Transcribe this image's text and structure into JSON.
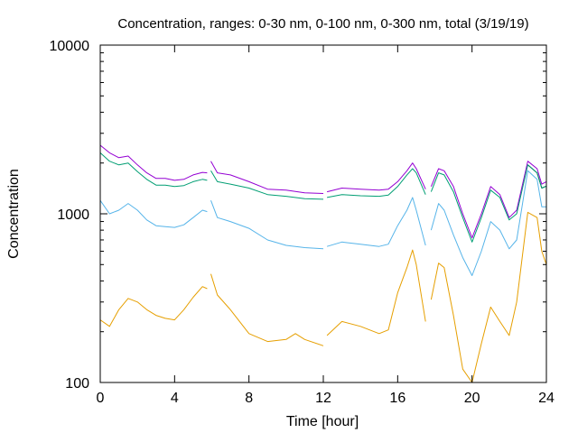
{
  "chart_data": {
    "type": "line",
    "title": "Concentration, ranges: 0-30 nm, 0-100 nm, 0-300 nm, total (3/19/19)",
    "xlabel": "Time [hour]",
    "ylabel": "Concentration",
    "xlim": [
      0,
      24
    ],
    "ylim": [
      100,
      10000
    ],
    "yscale": "log",
    "grid": false,
    "x_ticks": [
      0,
      4,
      8,
      12,
      16,
      20,
      24
    ],
    "y_ticks": [
      100,
      1000,
      10000
    ],
    "x_tick_labels": [
      "0",
      "4",
      "8",
      "12",
      "16",
      "20",
      "24"
    ],
    "y_tick_labels": [
      "100",
      "1000",
      "10000"
    ],
    "series": [
      {
        "color": "#9400d3",
        "segments": [
          [
            [
              0,
              2550
            ],
            [
              0.5,
              2300
            ],
            [
              1,
              2150
            ],
            [
              1.5,
              2200
            ],
            [
              2,
              1950
            ],
            [
              2.5,
              1750
            ],
            [
              3,
              1620
            ],
            [
              3.5,
              1620
            ],
            [
              4,
              1580
            ],
            [
              4.5,
              1600
            ],
            [
              5,
              1700
            ],
            [
              5.5,
              1760
            ],
            [
              5.75,
              1750
            ]
          ],
          [
            [
              5.95,
              2050
            ],
            [
              6.3,
              1750
            ],
            [
              7,
              1700
            ],
            [
              8,
              1550
            ],
            [
              9,
              1400
            ],
            [
              10,
              1380
            ],
            [
              11,
              1330
            ],
            [
              12,
              1320
            ]
          ],
          [
            [
              12.2,
              1350
            ],
            [
              13,
              1420
            ],
            [
              14,
              1400
            ],
            [
              15,
              1380
            ],
            [
              15.5,
              1400
            ],
            [
              16,
              1550
            ],
            [
              16.5,
              1800
            ],
            [
              16.8,
              2000
            ],
            [
              17,
              1850
            ],
            [
              17.5,
              1400
            ]
          ],
          [
            [
              17.8,
              1450
            ],
            [
              18.2,
              1850
            ],
            [
              18.5,
              1800
            ],
            [
              19,
              1450
            ],
            [
              19.5,
              1000
            ],
            [
              20,
              720
            ],
            [
              20.5,
              1000
            ],
            [
              21,
              1450
            ],
            [
              21.5,
              1300
            ],
            [
              22,
              950
            ],
            [
              22.4,
              1050
            ],
            [
              23,
              2050
            ],
            [
              23.5,
              1850
            ],
            [
              23.75,
              1500
            ],
            [
              24,
              1550
            ]
          ]
        ]
      },
      {
        "color": "#1e1e1e",
        "segments": [
          [
            [
              23,
              1950
            ],
            [
              23.5,
              1750
            ],
            [
              23.75,
              1420
            ],
            [
              24,
              1460
            ]
          ]
        ]
      },
      {
        "color": "#009e73",
        "segments": [
          [
            [
              0,
              2300
            ],
            [
              0.5,
              2050
            ],
            [
              1,
              1950
            ],
            [
              1.5,
              2000
            ],
            [
              2,
              1780
            ],
            [
              2.5,
              1600
            ],
            [
              3,
              1480
            ],
            [
              3.5,
              1480
            ],
            [
              4,
              1450
            ],
            [
              4.5,
              1470
            ],
            [
              5,
              1550
            ],
            [
              5.5,
              1600
            ],
            [
              5.75,
              1580
            ]
          ],
          [
            [
              5.95,
              1800
            ],
            [
              6.3,
              1550
            ],
            [
              7,
              1500
            ],
            [
              8,
              1420
            ],
            [
              9,
              1300
            ],
            [
              10,
              1270
            ],
            [
              11,
              1230
            ],
            [
              12,
              1220
            ]
          ],
          [
            [
              12.2,
              1250
            ],
            [
              13,
              1300
            ],
            [
              14,
              1280
            ],
            [
              15,
              1270
            ],
            [
              15.5,
              1290
            ],
            [
              16,
              1450
            ],
            [
              16.5,
              1700
            ],
            [
              16.8,
              1850
            ],
            [
              17,
              1750
            ],
            [
              17.5,
              1300
            ]
          ],
          [
            [
              17.8,
              1350
            ],
            [
              18.2,
              1750
            ],
            [
              18.5,
              1700
            ],
            [
              19,
              1350
            ],
            [
              19.5,
              950
            ],
            [
              20,
              680
            ],
            [
              20.5,
              950
            ],
            [
              21,
              1380
            ],
            [
              21.5,
              1250
            ],
            [
              22,
              920
            ],
            [
              22.4,
              1000
            ],
            [
              23,
              1950
            ],
            [
              23.5,
              1750
            ],
            [
              23.75,
              1420
            ],
            [
              24,
              1460
            ]
          ]
        ]
      },
      {
        "color": "#56b4e9",
        "segments": [
          [
            [
              0,
              1200
            ],
            [
              0.5,
              1000
            ],
            [
              1,
              1050
            ],
            [
              1.5,
              1150
            ],
            [
              2,
              1050
            ],
            [
              2.5,
              920
            ],
            [
              3,
              850
            ],
            [
              3.5,
              840
            ],
            [
              4,
              830
            ],
            [
              4.5,
              860
            ],
            [
              5,
              950
            ],
            [
              5.5,
              1050
            ],
            [
              5.75,
              1030
            ]
          ],
          [
            [
              5.95,
              1200
            ],
            [
              6.3,
              950
            ],
            [
              7,
              900
            ],
            [
              8,
              820
            ],
            [
              9,
              700
            ],
            [
              10,
              650
            ],
            [
              11,
              630
            ],
            [
              12,
              620
            ]
          ],
          [
            [
              12.2,
              640
            ],
            [
              13,
              680
            ],
            [
              14,
              660
            ],
            [
              15,
              640
            ],
            [
              15.5,
              660
            ],
            [
              16,
              850
            ],
            [
              16.5,
              1050
            ],
            [
              16.8,
              1250
            ],
            [
              17,
              1050
            ],
            [
              17.5,
              650
            ]
          ],
          [
            [
              17.8,
              800
            ],
            [
              18.2,
              1150
            ],
            [
              18.5,
              1050
            ],
            [
              19,
              750
            ],
            [
              19.5,
              550
            ],
            [
              20,
              430
            ],
            [
              20.5,
              600
            ],
            [
              21,
              900
            ],
            [
              21.5,
              800
            ],
            [
              22,
              620
            ],
            [
              22.4,
              700
            ],
            [
              23,
              1800
            ],
            [
              23.5,
              1600
            ],
            [
              23.75,
              1100
            ],
            [
              24,
              1100
            ]
          ]
        ]
      },
      {
        "color": "#e69f00",
        "segments": [
          [
            [
              0,
              235
            ],
            [
              0.5,
              215
            ],
            [
              1,
              270
            ],
            [
              1.5,
              315
            ],
            [
              2,
              300
            ],
            [
              2.5,
              270
            ],
            [
              3,
              250
            ],
            [
              3.5,
              240
            ],
            [
              4,
              235
            ],
            [
              4.5,
              270
            ],
            [
              5,
              320
            ],
            [
              5.5,
              370
            ],
            [
              5.75,
              360
            ]
          ],
          [
            [
              5.95,
              440
            ],
            [
              6.3,
              330
            ],
            [
              7,
              270
            ],
            [
              8,
              195
            ],
            [
              9,
              175
            ],
            [
              10,
              180
            ],
            [
              10.5,
              195
            ],
            [
              11,
              180
            ],
            [
              12,
              165
            ]
          ],
          [
            [
              12.2,
              190
            ],
            [
              13,
              230
            ],
            [
              14,
              215
            ],
            [
              15,
              195
            ],
            [
              15.5,
              205
            ],
            [
              16,
              340
            ],
            [
              16.5,
              480
            ],
            [
              16.8,
              610
            ],
            [
              17,
              500
            ],
            [
              17.5,
              230
            ]
          ],
          [
            [
              17.8,
              310
            ],
            [
              18.2,
              510
            ],
            [
              18.5,
              480
            ],
            [
              19,
              250
            ],
            [
              19.5,
              120
            ],
            [
              20,
              100
            ],
            [
              20.5,
              170
            ],
            [
              21,
              280
            ],
            [
              21.5,
              230
            ],
            [
              22,
              190
            ],
            [
              22.4,
              300
            ],
            [
              23,
              1020
            ],
            [
              23.5,
              950
            ],
            [
              23.75,
              600
            ],
            [
              24,
              500
            ]
          ]
        ]
      }
    ]
  }
}
